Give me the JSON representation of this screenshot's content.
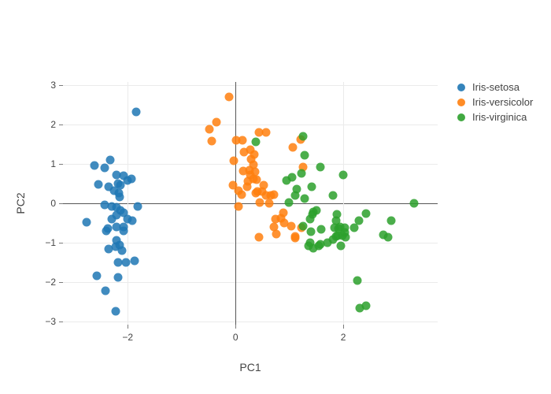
{
  "chart_data": {
    "type": "scatter",
    "title": "",
    "xlabel": "PC1",
    "ylabel": "PC2",
    "xlim": [
      -3.2,
      3.75
    ],
    "ylim": [
      -3.08,
      3.08
    ],
    "x_ticks": [
      -2,
      0,
      2
    ],
    "y_ticks": [
      3,
      2,
      1,
      0,
      -1,
      -2,
      -3
    ],
    "grid": true,
    "zerolines": true,
    "legend_position": "right-top-outside",
    "colors": {
      "setosa": "#1f77b4",
      "versicolor": "#ff7f0e",
      "virginica": "#2ca02c"
    },
    "series": [
      {
        "name": "Iris-setosa",
        "color": "#1f77b4",
        "points": [
          [
            -1.84,
            2.33
          ],
          [
            -2.61,
            0.97
          ],
          [
            -2.32,
            1.1
          ],
          [
            -2.42,
            0.9
          ],
          [
            -2.2,
            0.72
          ],
          [
            -2.07,
            0.7
          ],
          [
            -2.0,
            0.58
          ],
          [
            -2.54,
            0.48
          ],
          [
            -2.35,
            0.42
          ],
          [
            -2.18,
            0.5
          ],
          [
            -2.13,
            0.46
          ],
          [
            -1.93,
            0.62
          ],
          [
            -2.25,
            0.32
          ],
          [
            -2.16,
            0.26
          ],
          [
            -2.15,
            0.16
          ],
          [
            -2.42,
            -0.04
          ],
          [
            -2.29,
            -0.08
          ],
          [
            -2.2,
            -0.1
          ],
          [
            -2.13,
            -0.18
          ],
          [
            -1.81,
            -0.08
          ],
          [
            -2.76,
            -0.47
          ],
          [
            -2.29,
            -0.4
          ],
          [
            -2.2,
            -0.3
          ],
          [
            -2.07,
            -0.24
          ],
          [
            -2.0,
            -0.4
          ],
          [
            -1.91,
            -0.44
          ],
          [
            -2.37,
            -0.64
          ],
          [
            -2.2,
            -0.6
          ],
          [
            -2.07,
            -0.6
          ],
          [
            -2.39,
            -0.7
          ],
          [
            -2.07,
            -0.7
          ],
          [
            -2.2,
            -0.94
          ],
          [
            -2.15,
            -1.06
          ],
          [
            -2.35,
            -1.16
          ],
          [
            -2.22,
            -1.1
          ],
          [
            -2.1,
            -1.2
          ],
          [
            -2.18,
            -1.5
          ],
          [
            -2.03,
            -1.5
          ],
          [
            -1.87,
            -1.46
          ],
          [
            -2.57,
            -1.84
          ],
          [
            -2.18,
            -1.88
          ],
          [
            -2.41,
            -2.22
          ],
          [
            -2.22,
            -2.74
          ]
        ]
      },
      {
        "name": "Iris-versicolor",
        "color": "#ff7f0e",
        "points": [
          [
            -0.12,
            2.7
          ],
          [
            -0.36,
            2.06
          ],
          [
            -0.48,
            1.88
          ],
          [
            -0.44,
            1.58
          ],
          [
            0.01,
            1.6
          ],
          [
            0.13,
            1.6
          ],
          [
            0.44,
            1.8
          ],
          [
            0.57,
            1.8
          ],
          [
            1.07,
            1.42
          ],
          [
            1.21,
            1.63
          ],
          [
            0.16,
            1.3
          ],
          [
            0.28,
            1.36
          ],
          [
            0.29,
            1.12
          ],
          [
            -0.03,
            1.08
          ],
          [
            0.35,
            1.24
          ],
          [
            1.26,
            0.92
          ],
          [
            0.34,
            0.98
          ],
          [
            0.15,
            0.82
          ],
          [
            0.26,
            0.84
          ],
          [
            0.36,
            0.8
          ],
          [
            0.28,
            0.72
          ],
          [
            0.33,
            0.62
          ],
          [
            0.39,
            0.6
          ],
          [
            0.53,
            0.46
          ],
          [
            0.22,
            0.42
          ],
          [
            0.41,
            0.3
          ],
          [
            0.5,
            0.3
          ],
          [
            -0.05,
            0.46
          ],
          [
            0.06,
            0.32
          ],
          [
            0.11,
            0.22
          ],
          [
            0.23,
            0.56
          ],
          [
            0.38,
            0.26
          ],
          [
            0.45,
            0.03
          ],
          [
            0.57,
            0.2
          ],
          [
            0.65,
            0.2
          ],
          [
            0.72,
            0.22
          ],
          [
            0.62,
            0.0
          ],
          [
            0.06,
            -0.08
          ],
          [
            0.89,
            -0.24
          ],
          [
            0.74,
            -0.4
          ],
          [
            0.9,
            -0.5
          ],
          [
            0.72,
            -0.6
          ],
          [
            1.04,
            -0.57
          ],
          [
            1.23,
            -0.61
          ],
          [
            0.76,
            -0.78
          ],
          [
            0.43,
            -0.85
          ],
          [
            1.1,
            -0.84
          ],
          [
            1.11,
            -0.87
          ],
          [
            0.85,
            -0.37
          ]
        ]
      },
      {
        "name": "Iris-virginica",
        "color": "#2ca02c",
        "points": [
          [
            0.37,
            1.56
          ],
          [
            1.26,
            1.71
          ],
          [
            1.28,
            1.22
          ],
          [
            1.58,
            0.92
          ],
          [
            1.23,
            0.76
          ],
          [
            0.95,
            0.59
          ],
          [
            1.14,
            0.36
          ],
          [
            1.42,
            0.43
          ],
          [
            2.0,
            0.72
          ],
          [
            1.11,
            0.2
          ],
          [
            1.28,
            0.13
          ],
          [
            0.99,
            0.03
          ],
          [
            1.81,
            0.2
          ],
          [
            3.31,
            0.01
          ],
          [
            1.43,
            -0.27
          ],
          [
            1.38,
            -0.4
          ],
          [
            1.26,
            -0.57
          ],
          [
            1.44,
            -0.22
          ],
          [
            1.5,
            -0.17
          ],
          [
            1.4,
            -0.71
          ],
          [
            1.88,
            -0.28
          ],
          [
            1.87,
            -0.44
          ],
          [
            2.42,
            -0.26
          ],
          [
            2.29,
            -0.44
          ],
          [
            2.89,
            -0.43
          ],
          [
            1.91,
            -0.64
          ],
          [
            2.2,
            -0.62
          ],
          [
            1.59,
            -0.66
          ],
          [
            1.84,
            -0.62
          ],
          [
            1.94,
            -0.6
          ],
          [
            2.03,
            -0.62
          ],
          [
            1.87,
            -0.84
          ],
          [
            1.99,
            -0.82
          ],
          [
            2.04,
            -0.86
          ],
          [
            2.74,
            -0.8
          ],
          [
            2.83,
            -0.86
          ],
          [
            1.58,
            -1.04
          ],
          [
            1.71,
            -1.0
          ],
          [
            1.81,
            -0.92
          ],
          [
            1.96,
            -1.08
          ],
          [
            1.38,
            -1.0
          ],
          [
            1.45,
            -1.13
          ],
          [
            1.36,
            -1.07
          ],
          [
            1.55,
            -1.08
          ],
          [
            2.26,
            -1.96
          ],
          [
            2.31,
            -2.66
          ],
          [
            2.42,
            -2.6
          ],
          [
            1.9,
            -0.81
          ],
          [
            2.03,
            -0.74
          ],
          [
            1.05,
            0.66
          ]
        ]
      }
    ]
  }
}
